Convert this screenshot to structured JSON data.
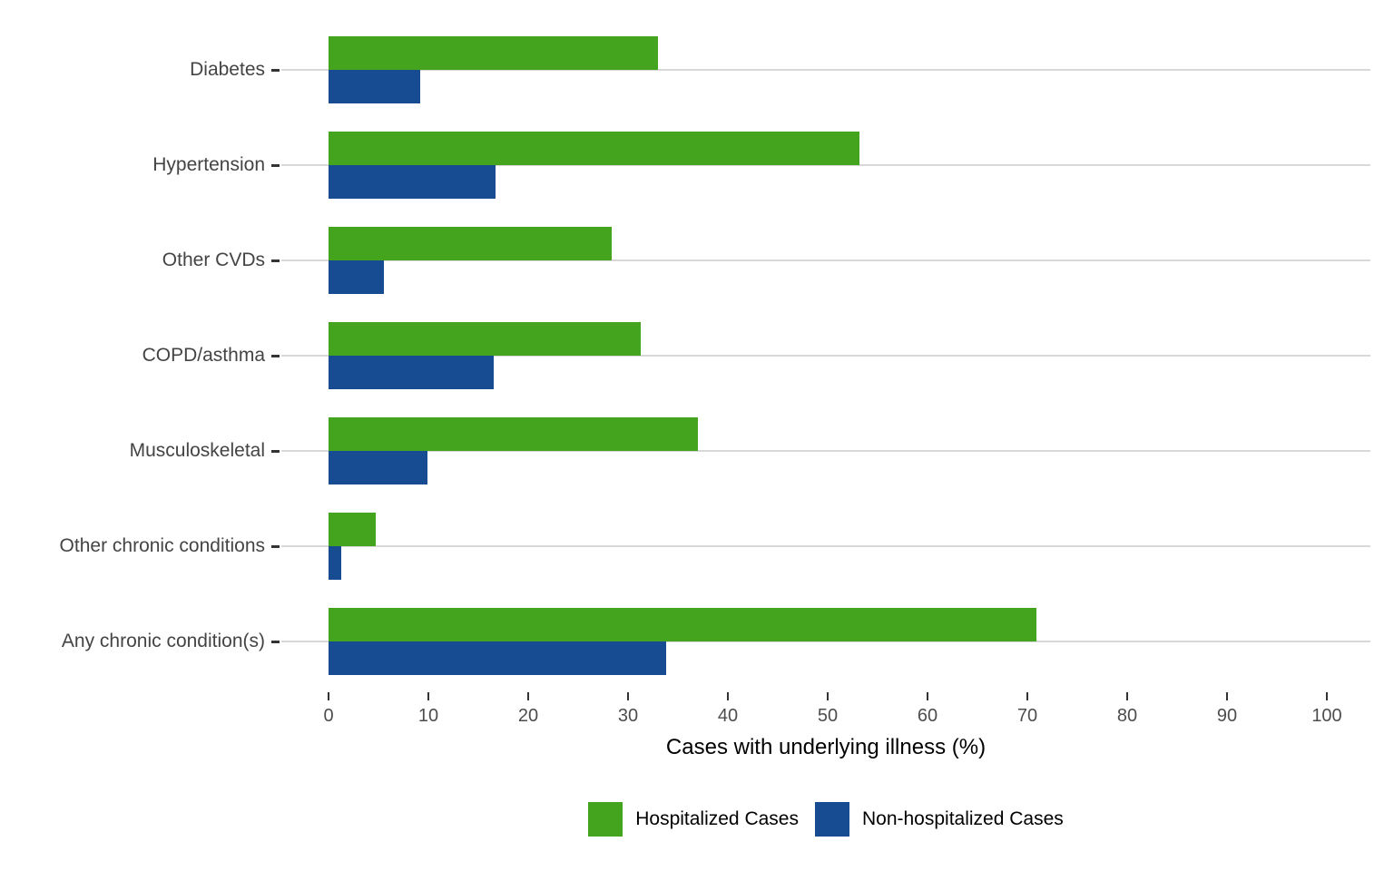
{
  "chart_data": {
    "type": "bar",
    "orientation": "horizontal",
    "title": "",
    "xlabel": "Cases with underlying illness (%)",
    "ylabel": "",
    "xlim": [
      0,
      100
    ],
    "x_ticks": [
      0,
      10,
      20,
      30,
      40,
      50,
      60,
      70,
      80,
      90,
      100
    ],
    "categories": [
      "Diabetes",
      "Hypertension",
      "Other CVDs",
      "COPD/asthma",
      "Musculoskeletal",
      "Other chronic conditions",
      "Any chronic condition(s)"
    ],
    "series": [
      {
        "name": "Hospitalized Cases",
        "color": "#45a41e",
        "values": [
          33.0,
          53.2,
          28.4,
          31.3,
          37.0,
          4.7,
          70.9
        ]
      },
      {
        "name": "Non-hospitalized Cases",
        "color": "#174c93",
        "values": [
          9.2,
          16.7,
          5.5,
          16.5,
          9.9,
          1.3,
          33.8
        ]
      }
    ],
    "legend_position": "bottom",
    "grid": "horizontal-only",
    "grid_color": "#d8d8d8",
    "tick_color": "#333333",
    "category_label_color": "#444444",
    "tick_label_color": "#4d4d4d",
    "axis_title_color": "#000000"
  }
}
